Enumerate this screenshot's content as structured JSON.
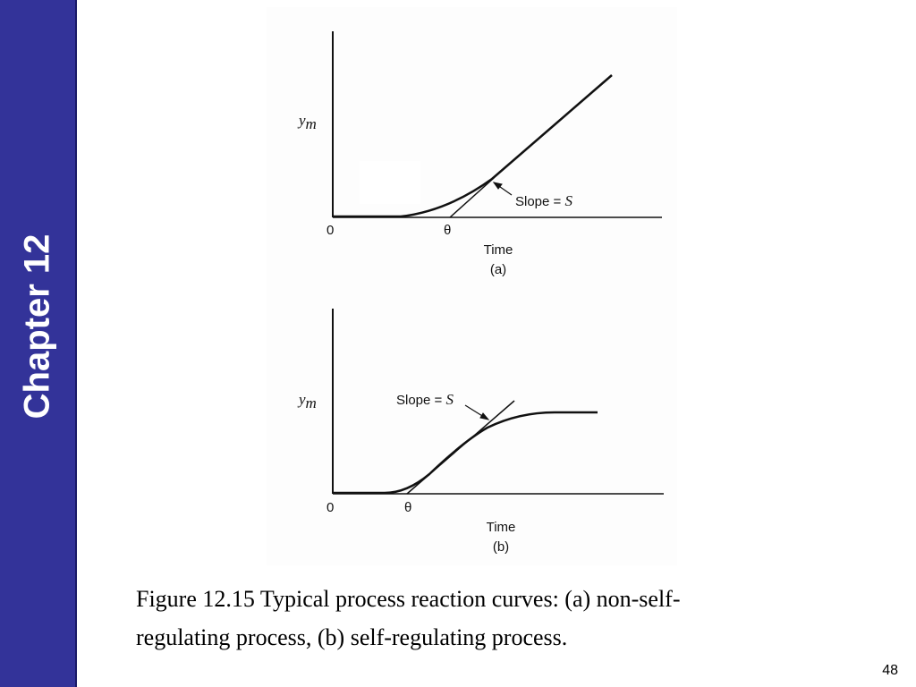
{
  "sidebar": {
    "label": "Chapter 12"
  },
  "figure": {
    "panel_a": {
      "y_label": {
        "base": "y",
        "sub": "m"
      },
      "origin": "0",
      "delay": "θ",
      "slope_text": "Slope =",
      "slope_symbol": "S",
      "x_label": "Time",
      "panel_label": "(a)"
    },
    "panel_b": {
      "y_label": {
        "base": "y",
        "sub": "m"
      },
      "origin": "0",
      "delay": "θ",
      "slope_text": "Slope =",
      "slope_symbol": "S",
      "x_label": "Time",
      "panel_label": "(b)"
    }
  },
  "caption": {
    "lines": [
      "Figure 12.15 Typical process reaction curves: (a) non-self-",
      "regulating process, (b) self-regulating process."
    ]
  },
  "page_number": "48"
}
